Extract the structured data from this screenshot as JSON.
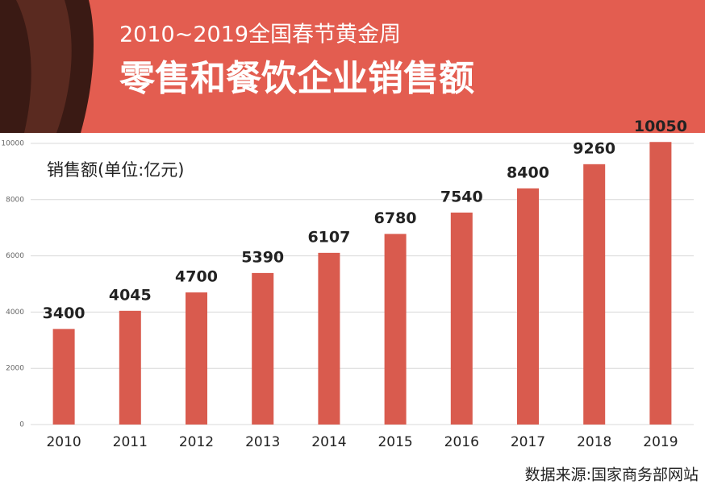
{
  "chart_data": {
    "type": "bar",
    "subtitle": "2010~2019全国春节黄金周",
    "title": "零售和餐饮企业销售额",
    "y_label": "销售额(单位:亿元)",
    "source": "数据来源:国家商务部网站",
    "categories": [
      "2010",
      "2011",
      "2012",
      "2013",
      "2014",
      "2015",
      "2016",
      "2017",
      "2018",
      "2019"
    ],
    "values": [
      3400,
      4045,
      4700,
      5390,
      6107,
      6780,
      7540,
      8400,
      9260,
      10050
    ],
    "color": "#d95b4e",
    "ylim": [
      0,
      10000
    ],
    "yticks": [
      0,
      2000,
      4000,
      6000,
      8000,
      10000
    ],
    "grid": true
  }
}
